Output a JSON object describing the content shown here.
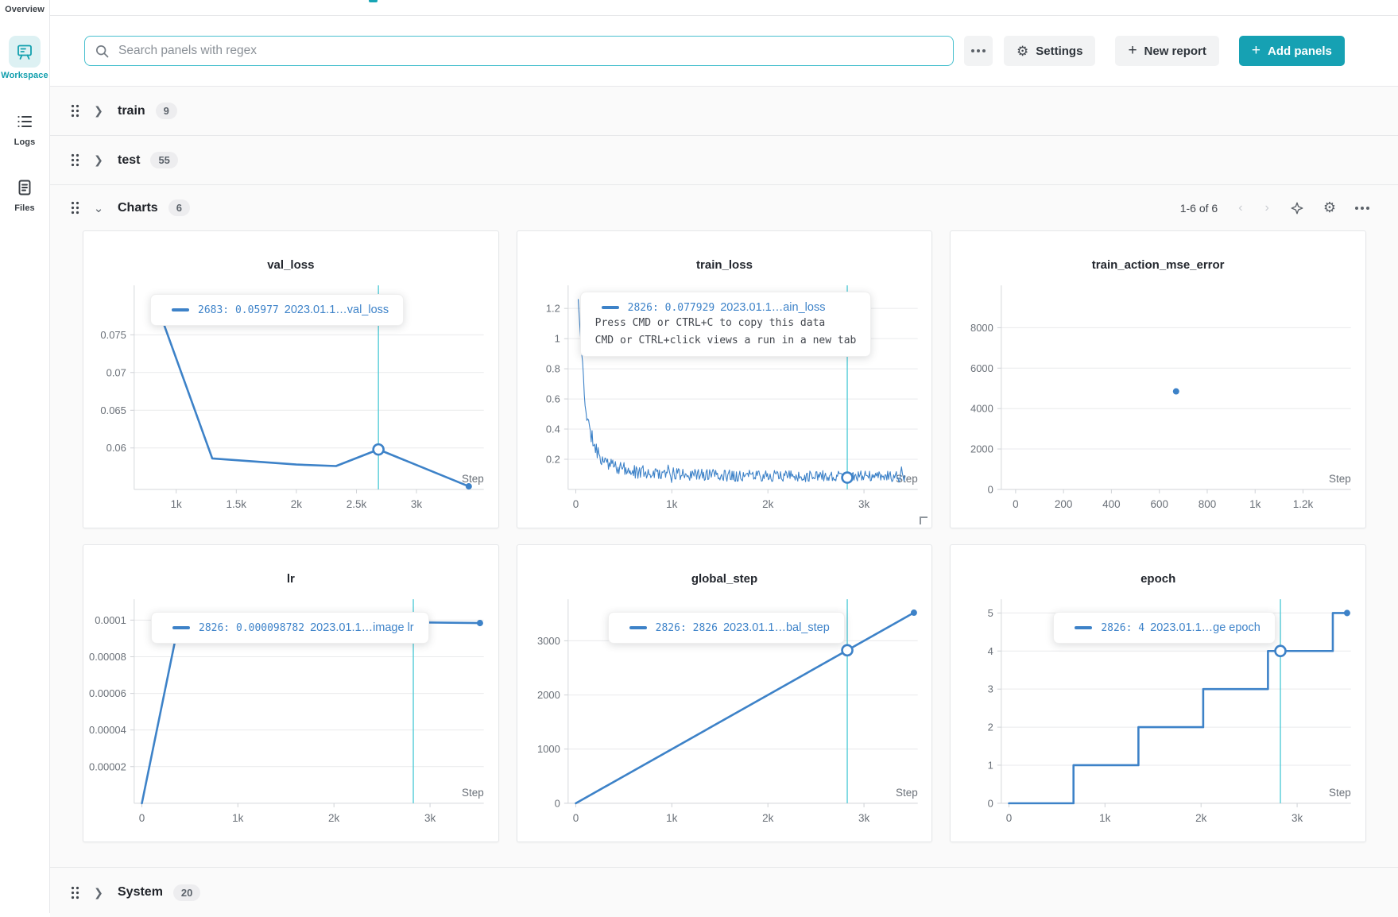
{
  "colors": {
    "accent_teal": "#16a1b3",
    "line_blue": "#3d82c8",
    "crosshair_teal": "#55ccd8",
    "active_rail_teal": "#129fae"
  },
  "icons": {
    "more": "three-dots",
    "settings": "gear",
    "search": "magnifier",
    "pager_prev": "chevron-left",
    "pager_next": "chevron-right",
    "panel_sort": "sparkle",
    "drag": "six-dot-handle"
  },
  "sidebar": {
    "items": [
      {
        "label": "Overview",
        "active": false
      },
      {
        "label": "Workspace",
        "active": true
      },
      {
        "label": "Logs",
        "active": false
      },
      {
        "label": "Files",
        "active": false
      }
    ]
  },
  "topbar": {
    "search_placeholder": "Search panels with regex",
    "settings_label": "Settings",
    "new_report_label": "New report",
    "add_panels_label": "Add panels",
    "plus": "+"
  },
  "sections": [
    {
      "name": "train",
      "count": "9",
      "state": "collapsed"
    },
    {
      "name": "test",
      "count": "55",
      "state": "collapsed"
    },
    {
      "name": "Charts",
      "count": "6",
      "state": "expanded"
    },
    {
      "name": "System",
      "count": "20",
      "state": "collapsed"
    }
  ],
  "charts_header": {
    "pager_label": "1-6 of 6",
    "prev": "‹",
    "next": "›"
  },
  "chart_data": [
    {
      "type": "line",
      "title": "val_loss",
      "xlabel": "Step",
      "x_range": [
        650,
        3560
      ],
      "y_range": [
        0.0545,
        0.0805
      ],
      "x_ticks": [
        {
          "v": 1000,
          "l": "1k"
        },
        {
          "v": 1500,
          "l": "1.5k"
        },
        {
          "v": 2000,
          "l": "2k"
        },
        {
          "v": 2500,
          "l": "2.5k"
        },
        {
          "v": 3000,
          "l": "3k"
        }
      ],
      "y_ticks": [
        {
          "v": 0.06,
          "l": "0.06"
        },
        {
          "v": 0.065,
          "l": "0.065"
        },
        {
          "v": 0.07,
          "l": "0.07"
        },
        {
          "v": 0.075,
          "l": "0.075"
        }
      ],
      "points": [
        [
          820,
          0.0798
        ],
        [
          1300,
          0.0586
        ],
        [
          2000,
          0.0578
        ],
        [
          2330,
          0.0576
        ],
        [
          2683,
          0.0598
        ],
        [
          3435,
          0.0549
        ]
      ],
      "crosshair_x": 2683,
      "marker": [
        2683,
        0.0598
      ],
      "end_dot": [
        3435,
        0.0549
      ],
      "line_width": 2.6,
      "tooltip": {
        "left": 84,
        "top": 79,
        "rows": [
          {
            "type": "legend",
            "key": "2683: 0.05977",
            "name": "2023.01.1…val_loss"
          }
        ]
      }
    },
    {
      "type": "noisy",
      "title": "train_loss",
      "xlabel": "Step",
      "x_range": [
        -80,
        3560
      ],
      "y_range": [
        0,
        1.3
      ],
      "x_ticks": [
        {
          "v": 0,
          "l": "0"
        },
        {
          "v": 1000,
          "l": "1k"
        },
        {
          "v": 2000,
          "l": "2k"
        },
        {
          "v": 3000,
          "l": "3k"
        }
      ],
      "y_ticks": [
        {
          "v": 0.2,
          "l": "0.2"
        },
        {
          "v": 0.4,
          "l": "0.4"
        },
        {
          "v": 0.6,
          "l": "0.6"
        },
        {
          "v": 0.8,
          "l": "0.8"
        },
        {
          "v": 1.0,
          "l": "1"
        },
        {
          "v": 1.2,
          "l": "1.2"
        }
      ],
      "generator": {
        "seed": 11,
        "step": 9,
        "anchors": [
          [
            25,
            1.26,
            0.0
          ],
          [
            45,
            1.05,
            0.02
          ],
          [
            70,
            0.82,
            0.04
          ],
          [
            100,
            0.55,
            0.05
          ],
          [
            140,
            0.4,
            0.05
          ],
          [
            190,
            0.3,
            0.05
          ],
          [
            250,
            0.22,
            0.05
          ],
          [
            330,
            0.17,
            0.045
          ],
          [
            450,
            0.14,
            0.045
          ],
          [
            600,
            0.12,
            0.045
          ],
          [
            900,
            0.105,
            0.042
          ],
          [
            1400,
            0.095,
            0.04
          ],
          [
            2000,
            0.09,
            0.038
          ],
          [
            2600,
            0.088,
            0.038
          ],
          [
            3200,
            0.085,
            0.036
          ],
          [
            3430,
            0.083,
            0.036
          ]
        ]
      },
      "crosshair_x": 2826,
      "marker": [
        2826,
        0.078
      ],
      "line_width": 1.1,
      "resize_handle": true,
      "tooltip": {
        "left": 79,
        "top": 76,
        "rows": [
          {
            "type": "legend",
            "key": "2826: 0.077929",
            "name": "2023.01.1…ain_loss"
          },
          {
            "type": "help",
            "text": "Press CMD or CTRL+C to copy this data"
          },
          {
            "type": "help",
            "text": "CMD or CTRL+click views a run in a new tab"
          }
        ]
      }
    },
    {
      "type": "scatter",
      "title": "train_action_mse_error",
      "xlabel": "Step",
      "x_range": [
        -60,
        1400
      ],
      "y_range": [
        0,
        9700
      ],
      "x_ticks": [
        {
          "v": 0,
          "l": "0"
        },
        {
          "v": 200,
          "l": "200"
        },
        {
          "v": 400,
          "l": "400"
        },
        {
          "v": 600,
          "l": "600"
        },
        {
          "v": 800,
          "l": "800"
        },
        {
          "v": 1000,
          "l": "1k"
        },
        {
          "v": 1200,
          "l": "1.2k"
        }
      ],
      "y_ticks": [
        {
          "v": 0,
          "l": "0"
        },
        {
          "v": 2000,
          "l": "2000"
        },
        {
          "v": 4000,
          "l": "4000"
        },
        {
          "v": 6000,
          "l": "6000"
        },
        {
          "v": 8000,
          "l": "8000"
        }
      ],
      "points": [
        [
          670,
          4850
        ]
      ]
    },
    {
      "type": "line",
      "title": "lr",
      "xlabel": "Step",
      "x_range": [
        -80,
        3560
      ],
      "y_range": [
        0,
        0.000107
      ],
      "x_ticks": [
        {
          "v": 0,
          "l": "0"
        },
        {
          "v": 1000,
          "l": "1k"
        },
        {
          "v": 2000,
          "l": "2k"
        },
        {
          "v": 3000,
          "l": "3k"
        }
      ],
      "y_ticks": [
        {
          "v": 2e-05,
          "l": "0.00002"
        },
        {
          "v": 4e-05,
          "l": "0.00004"
        },
        {
          "v": 6e-05,
          "l": "0.00006"
        },
        {
          "v": 8e-05,
          "l": "0.00008"
        },
        {
          "v": 0.0001,
          "l": "0.0001"
        }
      ],
      "points": [
        [
          0,
          0
        ],
        [
          390,
          0.0001
        ],
        [
          2826,
          9.8782e-05
        ],
        [
          3520,
          9.84e-05
        ]
      ],
      "crosshair_x": 2826,
      "marker": [
        2826,
        9.8782e-05
      ],
      "end_dot": [
        3520,
        9.84e-05
      ],
      "line_width": 2.6,
      "tooltip": {
        "left": 85,
        "top": 84,
        "rows": [
          {
            "type": "legend",
            "key": "2826: 0.000098782",
            "name": "2023.01.1…image lr"
          }
        ]
      }
    },
    {
      "type": "line",
      "title": "global_step",
      "xlabel": "Step",
      "x_range": [
        -80,
        3560
      ],
      "y_range": [
        0,
        3620
      ],
      "x_ticks": [
        {
          "v": 0,
          "l": "0"
        },
        {
          "v": 1000,
          "l": "1k"
        },
        {
          "v": 2000,
          "l": "2k"
        },
        {
          "v": 3000,
          "l": "3k"
        }
      ],
      "y_ticks": [
        {
          "v": 0,
          "l": "0"
        },
        {
          "v": 1000,
          "l": "1000"
        },
        {
          "v": 2000,
          "l": "2000"
        },
        {
          "v": 3000,
          "l": "3000"
        }
      ],
      "points": [
        [
          0,
          0
        ],
        [
          3520,
          3520
        ]
      ],
      "crosshair_x": 2826,
      "marker": [
        2826,
        2826
      ],
      "end_dot": [
        3520,
        3520
      ],
      "line_width": 2.6,
      "tooltip": {
        "left": 114,
        "top": 84,
        "rows": [
          {
            "type": "legend",
            "key": "2826: 2826",
            "name": "2023.01.1…bal_step"
          }
        ]
      }
    },
    {
      "type": "line",
      "title": "epoch",
      "xlabel": "Step",
      "x_range": [
        -80,
        3560
      ],
      "y_range": [
        0,
        5.15
      ],
      "x_ticks": [
        {
          "v": 0,
          "l": "0"
        },
        {
          "v": 1000,
          "l": "1k"
        },
        {
          "v": 2000,
          "l": "2k"
        },
        {
          "v": 3000,
          "l": "3k"
        }
      ],
      "y_ticks": [
        {
          "v": 0,
          "l": "0"
        },
        {
          "v": 1,
          "l": "1"
        },
        {
          "v": 2,
          "l": "2"
        },
        {
          "v": 3,
          "l": "3"
        },
        {
          "v": 4,
          "l": "4"
        },
        {
          "v": 5,
          "l": "5"
        }
      ],
      "points": [
        [
          0,
          0
        ],
        [
          672,
          0
        ],
        [
          672,
          1
        ],
        [
          1348,
          1
        ],
        [
          1348,
          2
        ],
        [
          2022,
          2
        ],
        [
          2022,
          3
        ],
        [
          2697,
          3
        ],
        [
          2697,
          4
        ],
        [
          3372,
          4
        ],
        [
          3372,
          5
        ],
        [
          3520,
          5
        ]
      ],
      "crosshair_x": 2826,
      "marker": [
        2826,
        4
      ],
      "end_dot": [
        3520,
        5
      ],
      "line_width": 2.6,
      "tooltip": {
        "left": 129,
        "top": 84,
        "rows": [
          {
            "type": "legend",
            "key": "2826: 4",
            "name": "2023.01.1…ge epoch"
          }
        ]
      }
    }
  ]
}
